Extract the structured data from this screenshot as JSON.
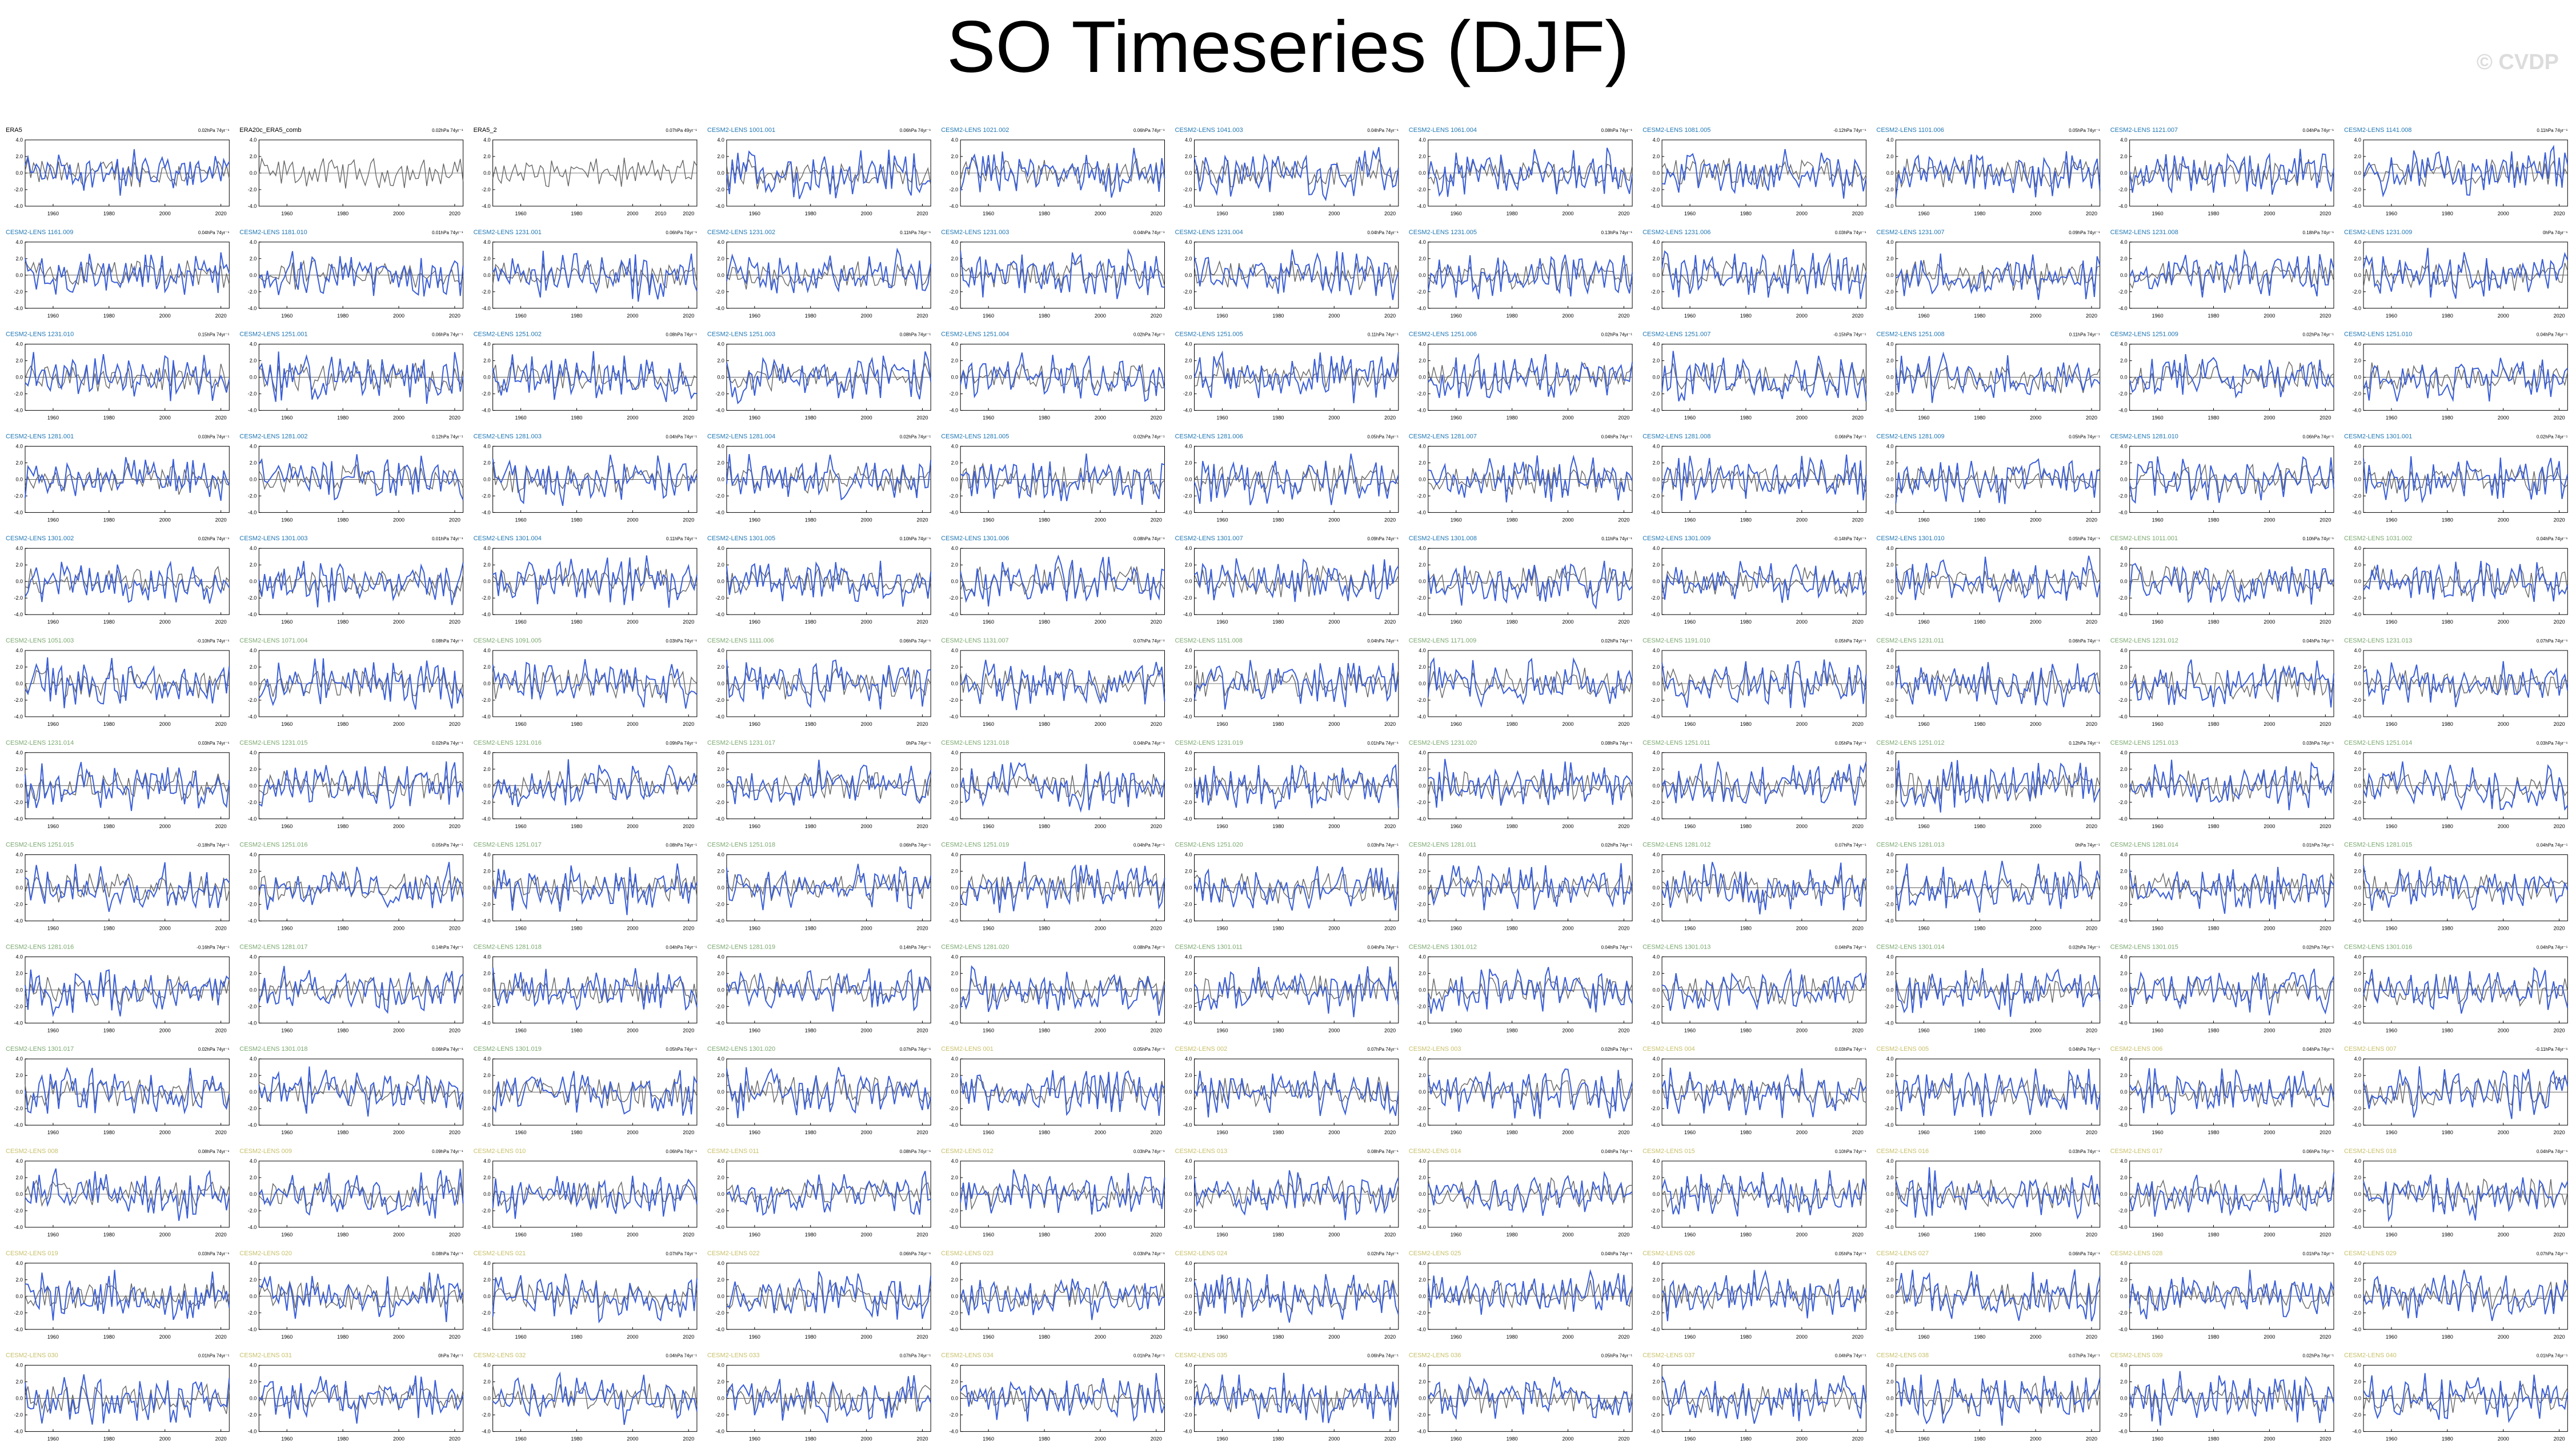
{
  "title": "SO Timeseries (DJF)",
  "watermark": "© CVDP",
  "colors": {
    "obs": "#666666",
    "ensemble": "#3a5ed6",
    "label_obs": "#000000",
    "label_blue": "#1f77b4",
    "label_green": "#7aa86f",
    "label_yellow": "#c8c06a"
  },
  "chart_data": {
    "type": "line",
    "layout": "small-multiples grid, 11 columns x 13 rows",
    "ylim": [
      -4.0,
      4.0
    ],
    "yticks": [
      "4.0",
      "2.0",
      "0.0",
      "-2.0",
      "-4.0"
    ],
    "xlim": [
      1950,
      2023
    ],
    "xticks": [
      "1960",
      "1980",
      "2000",
      "2020"
    ],
    "xticks_era5_2": [
      "1960",
      "1980",
      "2000",
      "2010",
      "2020"
    ],
    "panels": [
      {
        "label": "ERA5",
        "trend": "0.02hPa 74yr⁻¹",
        "color": "label_obs"
      },
      {
        "label": "ERA20c_ERA5_comb",
        "trend": "0.02hPa 74yr⁻¹",
        "color": "label_obs"
      },
      {
        "label": "ERA5_2",
        "trend": "0.07hPa 49yr⁻¹",
        "color": "label_obs"
      },
      {
        "label": "CESM2-LENS 1001.001",
        "trend": "0.06hPa 74yr⁻¹",
        "color": "label_blue"
      },
      {
        "label": "CESM2-LENS 1021.002",
        "trend": "0.06hPa 74yr⁻¹",
        "color": "label_blue"
      },
      {
        "label": "CESM2-LENS 1041.003",
        "trend": "0.04hPa 74yr⁻¹",
        "color": "label_blue"
      },
      {
        "label": "CESM2-LENS 1061.004",
        "trend": "0.08hPa 74yr⁻¹",
        "color": "label_blue"
      },
      {
        "label": "CESM2-LENS 1081.005",
        "trend": "-0.12hPa 74yr⁻¹",
        "color": "label_blue"
      },
      {
        "label": "CESM2-LENS 1101.006",
        "trend": "0.05hPa 74yr⁻¹",
        "color": "label_blue"
      },
      {
        "label": "CESM2-LENS 1121.007",
        "trend": "0.04hPa 74yr⁻¹",
        "color": "label_blue"
      },
      {
        "label": "CESM2-LENS 1141.008",
        "trend": "0.11hPa 74yr⁻¹",
        "color": "label_blue"
      },
      {
        "label": "CESM2-LENS 1161.009",
        "trend": "0.04hPa 74yr⁻¹",
        "color": "label_blue"
      },
      {
        "label": "CESM2-LENS 1181.010",
        "trend": "0.01hPa 74yr⁻¹",
        "color": "label_blue"
      },
      {
        "label": "CESM2-LENS 1231.001",
        "trend": "0.06hPa 74yr⁻¹",
        "color": "label_blue"
      },
      {
        "label": "CESM2-LENS 1231.002",
        "trend": "0.11hPa 74yr⁻¹",
        "color": "label_blue"
      },
      {
        "label": "CESM2-LENS 1231.003",
        "trend": "0.04hPa 74yr⁻¹",
        "color": "label_blue"
      },
      {
        "label": "CESM2-LENS 1231.004",
        "trend": "0.04hPa 74yr⁻¹",
        "color": "label_blue"
      },
      {
        "label": "CESM2-LENS 1231.005",
        "trend": "0.13hPa 74yr⁻¹",
        "color": "label_blue"
      },
      {
        "label": "CESM2-LENS 1231.006",
        "trend": "0.03hPa 74yr⁻¹",
        "color": "label_blue"
      },
      {
        "label": "CESM2-LENS 1231.007",
        "trend": "0.09hPa 74yr⁻¹",
        "color": "label_blue"
      },
      {
        "label": "CESM2-LENS 1231.008",
        "trend": "0.18hPa 74yr⁻¹",
        "color": "label_blue"
      },
      {
        "label": "CESM2-LENS 1231.009",
        "trend": "0hPa 74yr⁻¹",
        "color": "label_blue"
      },
      {
        "label": "CESM2-LENS 1231.010",
        "trend": "0.15hPa 74yr⁻¹",
        "color": "label_blue"
      },
      {
        "label": "CESM2-LENS 1251.001",
        "trend": "0.06hPa 74yr⁻¹",
        "color": "label_blue"
      },
      {
        "label": "CESM2-LENS 1251.002",
        "trend": "0.08hPa 74yr⁻¹",
        "color": "label_blue"
      },
      {
        "label": "CESM2-LENS 1251.003",
        "trend": "0.08hPa 74yr⁻¹",
        "color": "label_blue"
      },
      {
        "label": "CESM2-LENS 1251.004",
        "trend": "0.02hPa 74yr⁻¹",
        "color": "label_blue"
      },
      {
        "label": "CESM2-LENS 1251.005",
        "trend": "0.11hPa 74yr⁻¹",
        "color": "label_blue"
      },
      {
        "label": "CESM2-LENS 1251.006",
        "trend": "0.02hPa 74yr⁻¹",
        "color": "label_blue"
      },
      {
        "label": "CESM2-LENS 1251.007",
        "trend": "-0.15hPa 74yr⁻¹",
        "color": "label_blue"
      },
      {
        "label": "CESM2-LENS 1251.008",
        "trend": "0.11hPa 74yr⁻¹",
        "color": "label_blue"
      },
      {
        "label": "CESM2-LENS 1251.009",
        "trend": "0.02hPa 74yr⁻¹",
        "color": "label_blue"
      },
      {
        "label": "CESM2-LENS 1251.010",
        "trend": "0.04hPa 74yr⁻¹",
        "color": "label_blue"
      },
      {
        "label": "CESM2-LENS 1281.001",
        "trend": "0.03hPa 74yr⁻¹",
        "color": "label_blue"
      },
      {
        "label": "CESM2-LENS 1281.002",
        "trend": "0.12hPa 74yr⁻¹",
        "color": "label_blue"
      },
      {
        "label": "CESM2-LENS 1281.003",
        "trend": "0.04hPa 74yr⁻¹",
        "color": "label_blue"
      },
      {
        "label": "CESM2-LENS 1281.004",
        "trend": "0.02hPa 74yr⁻¹",
        "color": "label_blue"
      },
      {
        "label": "CESM2-LENS 1281.005",
        "trend": "0.02hPa 74yr⁻¹",
        "color": "label_blue"
      },
      {
        "label": "CESM2-LENS 1281.006",
        "trend": "0.05hPa 74yr⁻¹",
        "color": "label_blue"
      },
      {
        "label": "CESM2-LENS 1281.007",
        "trend": "0.04hPa 74yr⁻¹",
        "color": "label_blue"
      },
      {
        "label": "CESM2-LENS 1281.008",
        "trend": "0.06hPa 74yr⁻¹",
        "color": "label_blue"
      },
      {
        "label": "CESM2-LENS 1281.009",
        "trend": "0.05hPa 74yr⁻¹",
        "color": "label_blue"
      },
      {
        "label": "CESM2-LENS 1281.010",
        "trend": "0.06hPa 74yr⁻¹",
        "color": "label_blue"
      },
      {
        "label": "CESM2-LENS 1301.001",
        "trend": "0.02hPa 74yr⁻¹",
        "color": "label_blue"
      },
      {
        "label": "CESM2-LENS 1301.002",
        "trend": "0.02hPa 74yr⁻¹",
        "color": "label_blue"
      },
      {
        "label": "CESM2-LENS 1301.003",
        "trend": "0.01hPa 74yr⁻¹",
        "color": "label_blue"
      },
      {
        "label": "CESM2-LENS 1301.004",
        "trend": "0.11hPa 74yr⁻¹",
        "color": "label_blue"
      },
      {
        "label": "CESM2-LENS 1301.005",
        "trend": "0.10hPa 74yr⁻¹",
        "color": "label_blue"
      },
      {
        "label": "CESM2-LENS 1301.006",
        "trend": "0.08hPa 74yr⁻¹",
        "color": "label_blue"
      },
      {
        "label": "CESM2-LENS 1301.007",
        "trend": "0.09hPa 74yr⁻¹",
        "color": "label_blue"
      },
      {
        "label": "CESM2-LENS 1301.008",
        "trend": "0.11hPa 74yr⁻¹",
        "color": "label_blue"
      },
      {
        "label": "CESM2-LENS 1301.009",
        "trend": "-0.14hPa 74yr⁻¹",
        "color": "label_blue"
      },
      {
        "label": "CESM2-LENS 1301.010",
        "trend": "0.05hPa 74yr⁻¹",
        "color": "label_blue"
      },
      {
        "label": "CESM2-LENS 1011.001",
        "trend": "0.10hPa 74yr⁻¹",
        "color": "label_green"
      },
      {
        "label": "CESM2-LENS 1031.002",
        "trend": "0.04hPa 74yr⁻¹",
        "color": "label_green"
      },
      {
        "label": "CESM2-LENS 1051.003",
        "trend": "-0.10hPa 74yr⁻¹",
        "color": "label_green"
      },
      {
        "label": "CESM2-LENS 1071.004",
        "trend": "0.08hPa 74yr⁻¹",
        "color": "label_green"
      },
      {
        "label": "CESM2-LENS 1091.005",
        "trend": "0.03hPa 74yr⁻¹",
        "color": "label_green"
      },
      {
        "label": "CESM2-LENS 1111.006",
        "trend": "0.06hPa 74yr⁻¹",
        "color": "label_green"
      },
      {
        "label": "CESM2-LENS 1131.007",
        "trend": "0.07hPa 74yr⁻¹",
        "color": "label_green"
      },
      {
        "label": "CESM2-LENS 1151.008",
        "trend": "0.04hPa 74yr⁻¹",
        "color": "label_green"
      },
      {
        "label": "CESM2-LENS 1171.009",
        "trend": "0.02hPa 74yr⁻¹",
        "color": "label_green"
      },
      {
        "label": "CESM2-LENS 1191.010",
        "trend": "0.05hPa 74yr⁻¹",
        "color": "label_green"
      },
      {
        "label": "CESM2-LENS 1231.011",
        "trend": "0.06hPa 74yr⁻¹",
        "color": "label_green"
      },
      {
        "label": "CESM2-LENS 1231.012",
        "trend": "0.04hPa 74yr⁻¹",
        "color": "label_green"
      },
      {
        "label": "CESM2-LENS 1231.013",
        "trend": "0.07hPa 74yr⁻¹",
        "color": "label_green"
      },
      {
        "label": "CESM2-LENS 1231.014",
        "trend": "0.03hPa 74yr⁻¹",
        "color": "label_green"
      },
      {
        "label": "CESM2-LENS 1231.015",
        "trend": "0.02hPa 74yr⁻¹",
        "color": "label_green"
      },
      {
        "label": "CESM2-LENS 1231.016",
        "trend": "0.09hPa 74yr⁻¹",
        "color": "label_green"
      },
      {
        "label": "CESM2-LENS 1231.017",
        "trend": "0hPa 74yr⁻¹",
        "color": "label_green"
      },
      {
        "label": "CESM2-LENS 1231.018",
        "trend": "0.04hPa 74yr⁻¹",
        "color": "label_green"
      },
      {
        "label": "CESM2-LENS 1231.019",
        "trend": "0.01hPa 74yr⁻¹",
        "color": "label_green"
      },
      {
        "label": "CESM2-LENS 1231.020",
        "trend": "0.08hPa 74yr⁻¹",
        "color": "label_green"
      },
      {
        "label": "CESM2-LENS 1251.011",
        "trend": "0.05hPa 74yr⁻¹",
        "color": "label_green"
      },
      {
        "label": "CESM2-LENS 1251.012",
        "trend": "0.12hPa 74yr⁻¹",
        "color": "label_green"
      },
      {
        "label": "CESM2-LENS 1251.013",
        "trend": "0.03hPa 74yr⁻¹",
        "color": "label_green"
      },
      {
        "label": "CESM2-LENS 1251.014",
        "trend": "0.03hPa 74yr⁻¹",
        "color": "label_green"
      },
      {
        "label": "CESM2-LENS 1251.015",
        "trend": "-0.18hPa 74yr⁻¹",
        "color": "label_green"
      },
      {
        "label": "CESM2-LENS 1251.016",
        "trend": "0.05hPa 74yr⁻¹",
        "color": "label_green"
      },
      {
        "label": "CESM2-LENS 1251.017",
        "trend": "0.08hPa 74yr⁻¹",
        "color": "label_green"
      },
      {
        "label": "CESM2-LENS 1251.018",
        "trend": "0.06hPa 74yr⁻¹",
        "color": "label_green"
      },
      {
        "label": "CESM2-LENS 1251.019",
        "trend": "0.04hPa 74yr⁻¹",
        "color": "label_green"
      },
      {
        "label": "CESM2-LENS 1251.020",
        "trend": "0.03hPa 74yr⁻¹",
        "color": "label_green"
      },
      {
        "label": "CESM2-LENS 1281.011",
        "trend": "0.02hPa 74yr⁻¹",
        "color": "label_green"
      },
      {
        "label": "CESM2-LENS 1281.012",
        "trend": "0.07hPa 74yr⁻¹",
        "color": "label_green"
      },
      {
        "label": "CESM2-LENS 1281.013",
        "trend": "0hPa 74yr⁻¹",
        "color": "label_green"
      },
      {
        "label": "CESM2-LENS 1281.014",
        "trend": "0.01hPa 74yr⁻¹",
        "color": "label_green"
      },
      {
        "label": "CESM2-LENS 1281.015",
        "trend": "0.04hPa 74yr⁻¹",
        "color": "label_green"
      },
      {
        "label": "CESM2-LENS 1281.016",
        "trend": "-0.16hPa 74yr⁻¹",
        "color": "label_green"
      },
      {
        "label": "CESM2-LENS 1281.017",
        "trend": "0.14hPa 74yr⁻¹",
        "color": "label_green"
      },
      {
        "label": "CESM2-LENS 1281.018",
        "trend": "0.04hPa 74yr⁻¹",
        "color": "label_green"
      },
      {
        "label": "CESM2-LENS 1281.019",
        "trend": "0.14hPa 74yr⁻¹",
        "color": "label_green"
      },
      {
        "label": "CESM2-LENS 1281.020",
        "trend": "0.08hPa 74yr⁻¹",
        "color": "label_green"
      },
      {
        "label": "CESM2-LENS 1301.011",
        "trend": "0.04hPa 74yr⁻¹",
        "color": "label_green"
      },
      {
        "label": "CESM2-LENS 1301.012",
        "trend": "0.04hPa 74yr⁻¹",
        "color": "label_green"
      },
      {
        "label": "CESM2-LENS 1301.013",
        "trend": "0.04hPa 74yr⁻¹",
        "color": "label_green"
      },
      {
        "label": "CESM2-LENS 1301.014",
        "trend": "0.02hPa 74yr⁻¹",
        "color": "label_green"
      },
      {
        "label": "CESM2-LENS 1301.015",
        "trend": "0.02hPa 74yr⁻¹",
        "color": "label_green"
      },
      {
        "label": "CESM2-LENS 1301.016",
        "trend": "0.04hPa 74yr⁻¹",
        "color": "label_green"
      },
      {
        "label": "CESM2-LENS 1301.017",
        "trend": "0.02hPa 74yr⁻¹",
        "color": "label_green"
      },
      {
        "label": "CESM2-LENS 1301.018",
        "trend": "0.06hPa 74yr⁻¹",
        "color": "label_green"
      },
      {
        "label": "CESM2-LENS 1301.019",
        "trend": "0.05hPa 74yr⁻¹",
        "color": "label_green"
      },
      {
        "label": "CESM2-LENS 1301.020",
        "trend": "0.07hPa 74yr⁻¹",
        "color": "label_green"
      },
      {
        "label": "CESM2-LENS 001",
        "trend": "0.05hPa 74yr⁻¹",
        "color": "label_yellow"
      },
      {
        "label": "CESM2-LENS 002",
        "trend": "0.07hPa 74yr⁻¹",
        "color": "label_yellow"
      },
      {
        "label": "CESM2-LENS 003",
        "trend": "0.02hPa 74yr⁻¹",
        "color": "label_yellow"
      },
      {
        "label": "CESM2-LENS 004",
        "trend": "0.03hPa 74yr⁻¹",
        "color": "label_yellow"
      },
      {
        "label": "CESM2-LENS 005",
        "trend": "0.04hPa 74yr⁻¹",
        "color": "label_yellow"
      },
      {
        "label": "CESM2-LENS 006",
        "trend": "0.04hPa 74yr⁻¹",
        "color": "label_yellow"
      },
      {
        "label": "CESM2-LENS 007",
        "trend": "-0.11hPa 74yr⁻¹",
        "color": "label_yellow"
      },
      {
        "label": "CESM2-LENS 008",
        "trend": "0.08hPa 74yr⁻¹",
        "color": "label_yellow"
      },
      {
        "label": "CESM2-LENS 009",
        "trend": "0.09hPa 74yr⁻¹",
        "color": "label_yellow"
      },
      {
        "label": "CESM2-LENS 010",
        "trend": "0.06hPa 74yr⁻¹",
        "color": "label_yellow"
      },
      {
        "label": "CESM2-LENS 011",
        "trend": "0.08hPa 74yr⁻¹",
        "color": "label_yellow"
      },
      {
        "label": "CESM2-LENS 012",
        "trend": "0.03hPa 74yr⁻¹",
        "color": "label_yellow"
      },
      {
        "label": "CESM2-LENS 013",
        "trend": "0.08hPa 74yr⁻¹",
        "color": "label_yellow"
      },
      {
        "label": "CESM2-LENS 014",
        "trend": "0.04hPa 74yr⁻¹",
        "color": "label_yellow"
      },
      {
        "label": "CESM2-LENS 015",
        "trend": "0.10hPa 74yr⁻¹",
        "color": "label_yellow"
      },
      {
        "label": "CESM2-LENS 016",
        "trend": "0.03hPa 74yr⁻¹",
        "color": "label_yellow"
      },
      {
        "label": "CESM2-LENS 017",
        "trend": "0.06hPa 74yr⁻¹",
        "color": "label_yellow"
      },
      {
        "label": "CESM2-LENS 018",
        "trend": "0.04hPa 74yr⁻¹",
        "color": "label_yellow"
      },
      {
        "label": "CESM2-LENS 019",
        "trend": "0.03hPa 74yr⁻¹",
        "color": "label_yellow"
      },
      {
        "label": "CESM2-LENS 020",
        "trend": "0.08hPa 74yr⁻¹",
        "color": "label_yellow"
      },
      {
        "label": "CESM2-LENS 021",
        "trend": "0.07hPa 74yr⁻¹",
        "color": "label_yellow"
      },
      {
        "label": "CESM2-LENS 022",
        "trend": "0.06hPa 74yr⁻¹",
        "color": "label_yellow"
      },
      {
        "label": "CESM2-LENS 023",
        "trend": "0.03hPa 74yr⁻¹",
        "color": "label_yellow"
      },
      {
        "label": "CESM2-LENS 024",
        "trend": "0.02hPa 74yr⁻¹",
        "color": "label_yellow"
      },
      {
        "label": "CESM2-LENS 025",
        "trend": "0.04hPa 74yr⁻¹",
        "color": "label_yellow"
      },
      {
        "label": "CESM2-LENS 026",
        "trend": "0.05hPa 74yr⁻¹",
        "color": "label_yellow"
      },
      {
        "label": "CESM2-LENS 027",
        "trend": "0.06hPa 74yr⁻¹",
        "color": "label_yellow"
      },
      {
        "label": "CESM2-LENS 028",
        "trend": "0.01hPa 74yr⁻¹",
        "color": "label_yellow"
      },
      {
        "label": "CESM2-LENS 029",
        "trend": "0.07hPa 74yr⁻¹",
        "color": "label_yellow"
      },
      {
        "label": "CESM2-LENS 030",
        "trend": "0.01hPa 74yr⁻¹",
        "color": "label_yellow"
      },
      {
        "label": "CESM2-LENS 031",
        "trend": "0hPa 74yr⁻¹",
        "color": "label_yellow"
      },
      {
        "label": "CESM2-LENS 032",
        "trend": "0.04hPa 74yr⁻¹",
        "color": "label_yellow"
      },
      {
        "label": "CESM2-LENS 033",
        "trend": "0.07hPa 74yr⁻¹",
        "color": "label_yellow"
      },
      {
        "label": "CESM2-LENS 034",
        "trend": "0.01hPa 74yr⁻¹",
        "color": "label_yellow"
      },
      {
        "label": "CESM2-LENS 035",
        "trend": "0.06hPa 74yr⁻¹",
        "color": "label_yellow"
      },
      {
        "label": "CESM2-LENS 036",
        "trend": "0.05hPa 74yr⁻¹",
        "color": "label_yellow"
      },
      {
        "label": "CESM2-LENS 037",
        "trend": "0.04hPa 74yr⁻¹",
        "color": "label_yellow"
      },
      {
        "label": "CESM2-LENS 038",
        "trend": "0.07hPa 74yr⁻¹",
        "color": "label_yellow"
      },
      {
        "label": "CESM2-LENS 039",
        "trend": "0.02hPa 74yr⁻¹",
        "color": "label_yellow"
      },
      {
        "label": "CESM2-LENS 040",
        "trend": "0.01hPa 74yr⁻¹",
        "color": "label_yellow"
      }
    ]
  }
}
